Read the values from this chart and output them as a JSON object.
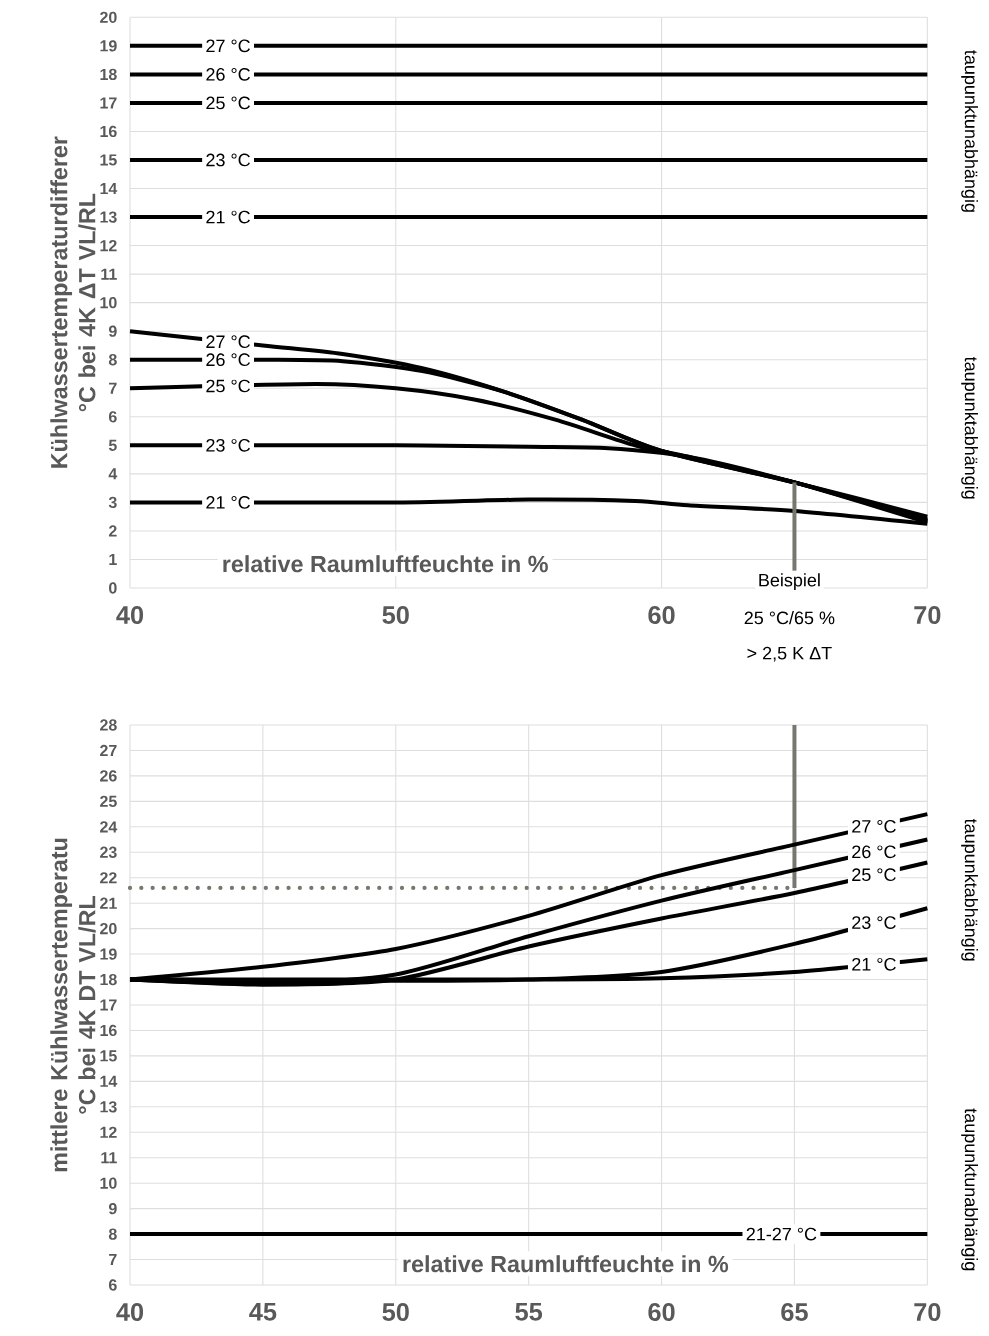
{
  "chart_data": [
    {
      "type": "line",
      "ylabel": "Kühlwassertemperaturdifferer °C bei 4K ΔT VL/RL",
      "xlabel": "relative Raumluftfeuchte in %",
      "grid": true,
      "xlim": [
        40,
        70
      ],
      "xticks": [
        40,
        50,
        60,
        70
      ],
      "ylim": [
        0,
        20
      ],
      "yticks": [
        0,
        1,
        2,
        3,
        4,
        5,
        6,
        7,
        8,
        9,
        10,
        11,
        12,
        13,
        14,
        15,
        16,
        17,
        18,
        19,
        20
      ],
      "series": [
        {
          "name": "27 °C",
          "color": "#000000",
          "x": [
            40,
            70
          ],
          "values": [
            19,
            19
          ]
        },
        {
          "name": "26 °C",
          "color": "#000000",
          "x": [
            40,
            70
          ],
          "values": [
            18,
            18
          ]
        },
        {
          "name": "25 °C",
          "color": "#000000",
          "x": [
            40,
            70
          ],
          "values": [
            17,
            17
          ]
        },
        {
          "name": "23 °C",
          "color": "#000000",
          "x": [
            40,
            70
          ],
          "values": [
            15,
            15
          ]
        },
        {
          "name": "21 °C",
          "color": "#000000",
          "x": [
            40,
            70
          ],
          "values": [
            13,
            13
          ]
        },
        {
          "name": "27 °C",
          "color": "#000000",
          "x": [
            40,
            45,
            48,
            51,
            54,
            57,
            60,
            65,
            70
          ],
          "values": [
            9,
            8.5,
            8.2,
            7.7,
            6.9,
            5.9,
            4.8,
            3.7,
            2.5
          ]
        },
        {
          "name": "26 °C",
          "color": "#000000",
          "x": [
            40,
            45,
            48,
            51,
            54,
            57,
            60,
            65,
            70
          ],
          "values": [
            8,
            8,
            7.95,
            7.6,
            6.9,
            5.9,
            4.8,
            3.7,
            2.4
          ]
        },
        {
          "name": "25 °C",
          "color": "#000000",
          "x": [
            40,
            47,
            50,
            53,
            56,
            59,
            61,
            65,
            70
          ],
          "values": [
            7,
            7.15,
            7,
            6.6,
            5.9,
            5,
            4.6,
            3.7,
            2.35
          ]
        },
        {
          "name": "23 °C",
          "color": "#000000",
          "x": [
            40,
            50,
            55,
            58,
            61,
            65,
            70
          ],
          "values": [
            5,
            5,
            4.95,
            4.9,
            4.6,
            3.7,
            2.3
          ]
        },
        {
          "name": "21 °C",
          "color": "#000000",
          "x": [
            40,
            50,
            55,
            59,
            61,
            65,
            70
          ],
          "values": [
            3,
            3,
            3.1,
            3.05,
            2.9,
            2.7,
            2.25
          ]
        },
        {
          "color": "#777770",
          "x": [
            65,
            65
          ],
          "values": [
            0.6,
            3.7
          ]
        }
      ],
      "annotations": [
        "taupunktunabhängig",
        "taupunktabhängig",
        "Beispiel",
        "25 °C/65 %",
        "> 2,5 K ΔT"
      ]
    },
    {
      "type": "line",
      "ylabel": "mittlere Kühlwassertemperatu °C bei 4K DT VL/RL",
      "xlabel": "relative Raumluftfeuchte in %",
      "grid": true,
      "xlim": [
        40,
        70
      ],
      "xticks": [
        40,
        45,
        50,
        55,
        60,
        65,
        70
      ],
      "ylim": [
        6,
        28
      ],
      "yticks": [
        6,
        7,
        8,
        9,
        10,
        11,
        12,
        13,
        14,
        15,
        16,
        17,
        18,
        19,
        20,
        21,
        22,
        23,
        24,
        25,
        26,
        27,
        28
      ],
      "series": [
        {
          "color": "#777770",
          "x": [
            40,
            65
          ],
          "values": [
            21.6,
            21.6
          ],
          "line_style": "dotted"
        },
        {
          "color": "#777770",
          "x": [
            65,
            65
          ],
          "values": [
            21.6,
            28
          ]
        },
        {
          "name": "27 °C",
          "color": "#000000",
          "x": [
            40,
            45,
            50,
            55,
            60,
            65,
            70
          ],
          "values": [
            18,
            18.5,
            19.2,
            20.5,
            22.1,
            23.3,
            24.5
          ]
        },
        {
          "name": "26 °C",
          "color": "#000000",
          "x": [
            40,
            45,
            50,
            55,
            60,
            65,
            70
          ],
          "values": [
            18,
            17.85,
            18.2,
            19.7,
            21.1,
            22.3,
            23.5
          ]
        },
        {
          "name": "25 °C",
          "color": "#000000",
          "x": [
            40,
            45,
            50,
            55,
            60,
            65,
            70
          ],
          "values": [
            18,
            17.8,
            18,
            19.3,
            20.4,
            21.4,
            22.6
          ]
        },
        {
          "name": "23 °C",
          "color": "#000000",
          "x": [
            40,
            50,
            55,
            60,
            65,
            70
          ],
          "values": [
            18,
            17.95,
            18,
            18.3,
            19.4,
            20.8
          ]
        },
        {
          "name": "21 °C",
          "color": "#000000",
          "x": [
            40,
            55,
            60,
            65,
            70
          ],
          "values": [
            18,
            18,
            18.05,
            18.3,
            18.8
          ]
        },
        {
          "name": "21-27 °C",
          "color": "#000000",
          "x": [
            40,
            70
          ],
          "values": [
            8,
            8
          ]
        }
      ],
      "annotations": [
        "taupunktabhängig",
        "taupunktunabhängig"
      ]
    }
  ]
}
